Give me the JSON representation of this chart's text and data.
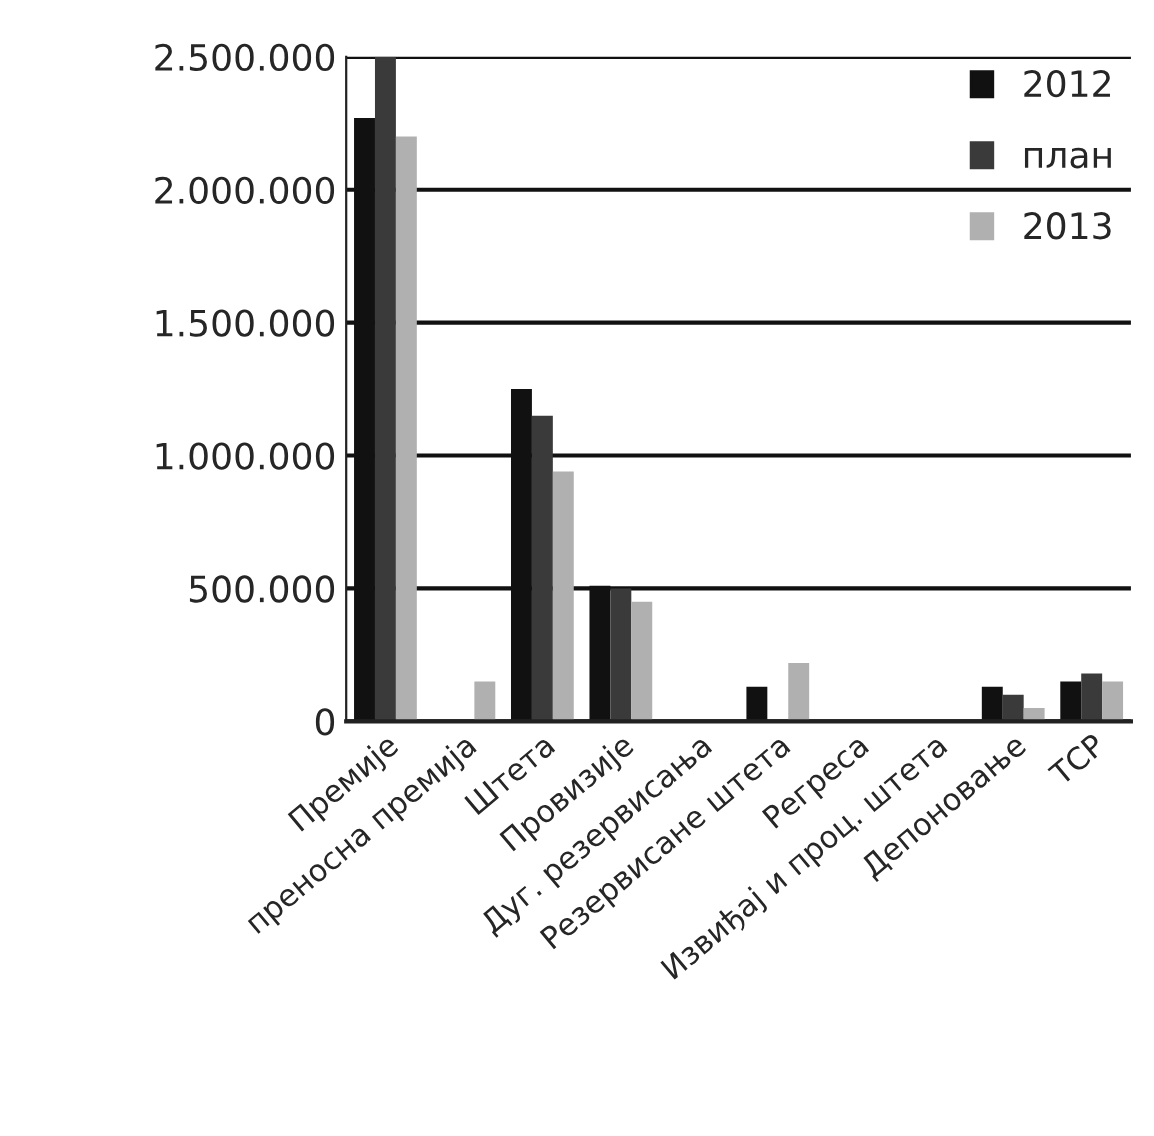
{
  "chart_data": {
    "type": "bar",
    "categories": [
      "Премије",
      "преносна премија",
      "Штета",
      "Провизије",
      "Дуг. резервисања",
      "Резервисане штета",
      "Регреса",
      "Извиђај и проц. штета",
      "Депоновање",
      "ТСР"
    ],
    "series": [
      {
        "name": "2012",
        "color": "#111111",
        "values": [
          2270000,
          null,
          1250000,
          510000,
          null,
          130000,
          null,
          null,
          130000,
          150000
        ]
      },
      {
        "name": "план",
        "color": "#3a3a3a",
        "values": [
          2500000,
          null,
          1150000,
          500000,
          null,
          null,
          null,
          null,
          100000,
          180000
        ]
      },
      {
        "name": "2013",
        "color": "#b0b0b0",
        "values": [
          2200000,
          150000,
          940000,
          450000,
          null,
          220000,
          null,
          null,
          50000,
          150000
        ]
      }
    ],
    "ylim": [
      0,
      2500000
    ],
    "yticks": [
      {
        "value": 0,
        "label": "0"
      },
      {
        "value": 500000,
        "label": "500.000"
      },
      {
        "value": 1000000,
        "label": "1.000.000"
      },
      {
        "value": 1500000,
        "label": "1.500.000"
      },
      {
        "value": 2000000,
        "label": "2.000.000"
      },
      {
        "value": 2500000,
        "label": "2.500.000"
      }
    ],
    "grid": "y",
    "legend": "top right"
  }
}
